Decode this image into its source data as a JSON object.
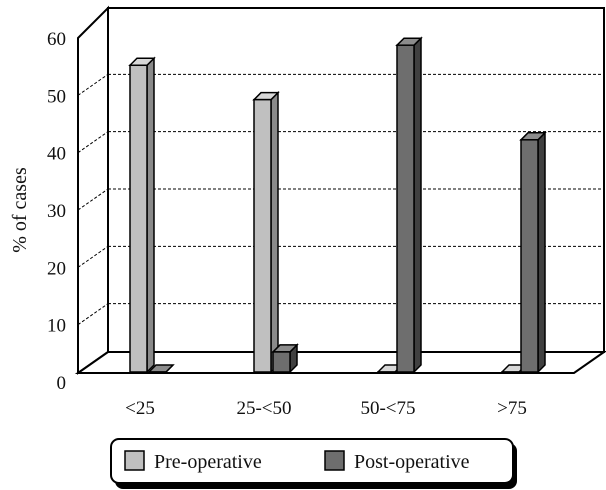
{
  "chart_data": {
    "type": "bar",
    "title": "",
    "xlabel": "",
    "ylabel": "% of cases",
    "ylim": [
      0,
      60
    ],
    "yticks": [
      0,
      10,
      20,
      30,
      40,
      50,
      60
    ],
    "grid": "horizontal dashed",
    "legend_position": "bottom",
    "categories": [
      "<25",
      "25-<50",
      "50-<75",
      ">75"
    ],
    "series": [
      {
        "name": "Pre-operative",
        "color": "#c0c0c0",
        "values": [
          53.5,
          47.5,
          0,
          0
        ]
      },
      {
        "name": "Post-operative",
        "color": "#6e6e6e",
        "values": [
          0,
          3.5,
          57,
          40.5
        ]
      }
    ]
  }
}
